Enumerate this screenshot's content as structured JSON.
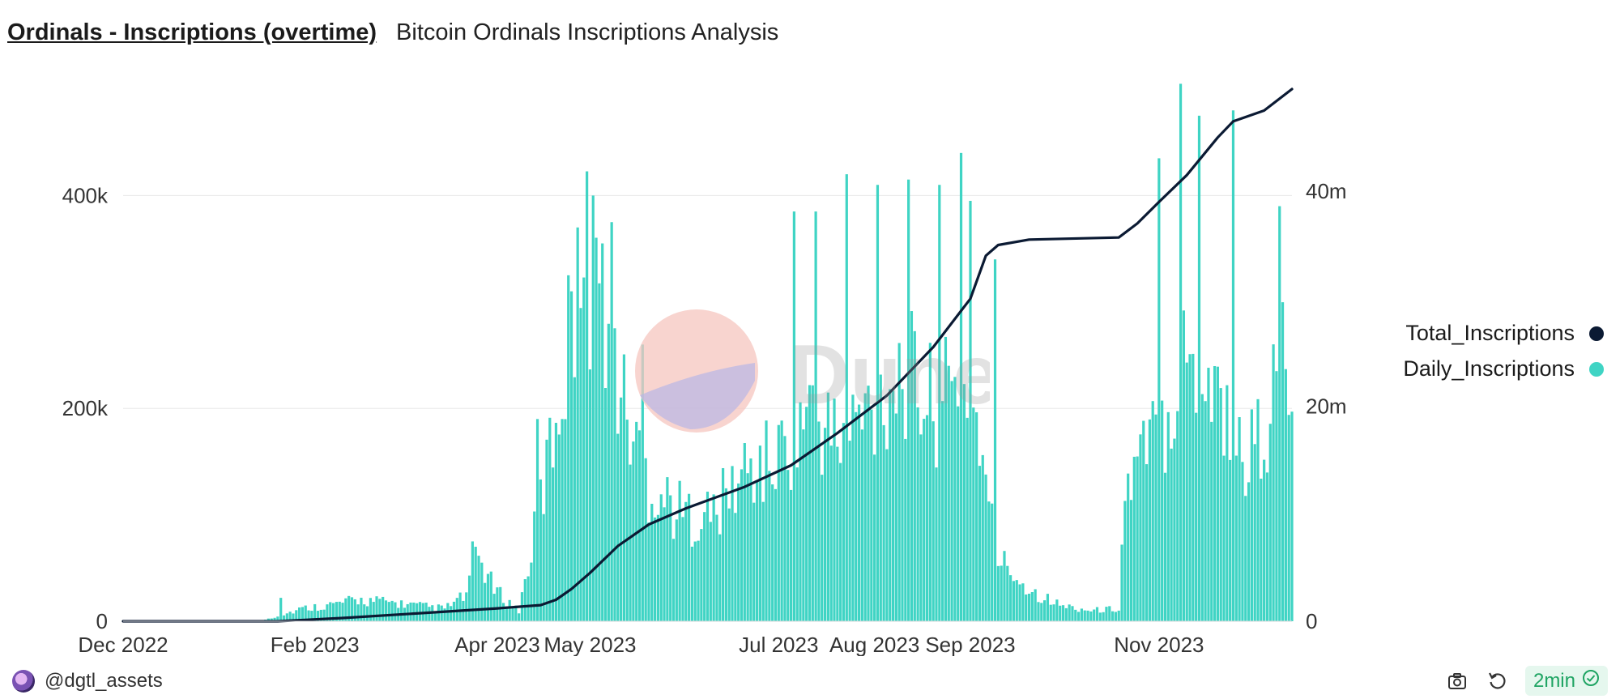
{
  "header": {
    "title": "Ordinals - Inscriptions (overtime)",
    "subtitle": "Bitcoin Ordinals Inscriptions Analysis"
  },
  "watermark": {
    "text": "Dune"
  },
  "legend": {
    "items": [
      {
        "label": "Total_Inscriptions",
        "color": "#0b1a33"
      },
      {
        "label": "Daily_Inscriptions",
        "color": "#3fd4c4"
      }
    ]
  },
  "footer": {
    "author": "@dgtl_assets",
    "refresh_label": "2min",
    "icons": [
      "camera-icon",
      "refresh-icon",
      "check-circle-icon"
    ]
  },
  "chart_data": {
    "type": "bar",
    "x_start": "2022-12-01",
    "x_tick_labels": [
      "Dec 2022",
      "Feb 2023",
      "Apr 2023",
      "May 2023",
      "Jul 2023",
      "Aug 2023",
      "Sep 2023",
      "Nov 2023"
    ],
    "x_tick_dates": [
      "2022-12-01",
      "2023-02-01",
      "2023-04-01",
      "2023-05-01",
      "2023-07-01",
      "2023-08-01",
      "2023-09-01",
      "2023-11-01"
    ],
    "y_left": {
      "ticks": [
        0,
        200000,
        400000
      ],
      "tick_labels": [
        "0",
        "200k",
        "400k"
      ],
      "range": [
        0,
        500000
      ]
    },
    "y_right": {
      "ticks": [
        0,
        20000000,
        40000000
      ],
      "tick_labels": [
        "0",
        "20m",
        "40m"
      ],
      "range": [
        0,
        49500000
      ]
    },
    "grid": true,
    "legend_position": "right",
    "series": [
      {
        "name": "Daily_Inscriptions",
        "kind": "bar",
        "axis": "left",
        "color": "#3fd4c4",
        "anchors": [
          [
            "2022-12-01",
            0
          ],
          [
            "2023-01-14",
            0
          ],
          [
            "2023-01-20",
            5000
          ],
          [
            "2023-01-28",
            12000
          ],
          [
            "2023-02-05",
            15000
          ],
          [
            "2023-02-15",
            20000
          ],
          [
            "2023-02-25",
            18000
          ],
          [
            "2023-03-05",
            15000
          ],
          [
            "2023-03-15",
            12000
          ],
          [
            "2023-03-22",
            25000
          ],
          [
            "2023-03-26",
            60000
          ],
          [
            "2023-03-31",
            30000
          ],
          [
            "2023-04-08",
            10000
          ],
          [
            "2023-04-13",
            80000
          ],
          [
            "2023-04-18",
            160000
          ],
          [
            "2023-04-24",
            260000
          ],
          [
            "2023-04-30",
            340000
          ],
          [
            "2023-05-06",
            300000
          ],
          [
            "2023-05-12",
            200000
          ],
          [
            "2023-05-20",
            130000
          ],
          [
            "2023-05-31",
            100000
          ],
          [
            "2023-06-10",
            100000
          ],
          [
            "2023-06-20",
            140000
          ],
          [
            "2023-06-30",
            150000
          ],
          [
            "2023-07-10",
            200000
          ],
          [
            "2023-07-20",
            170000
          ],
          [
            "2023-07-31",
            200000
          ],
          [
            "2023-08-10",
            240000
          ],
          [
            "2023-08-20",
            200000
          ],
          [
            "2023-08-31",
            220000
          ],
          [
            "2023-09-04",
            180000
          ],
          [
            "2023-09-06",
            120000
          ],
          [
            "2023-09-10",
            60000
          ],
          [
            "2023-09-20",
            30000
          ],
          [
            "2023-09-30",
            15000
          ],
          [
            "2023-10-10",
            10000
          ],
          [
            "2023-10-19",
            12000
          ],
          [
            "2023-10-21",
            120000
          ],
          [
            "2023-11-01",
            180000
          ],
          [
            "2023-11-10",
            250000
          ],
          [
            "2023-11-20",
            220000
          ],
          [
            "2023-11-28",
            150000
          ],
          [
            "2023-12-05",
            180000
          ],
          [
            "2023-12-12",
            250000
          ],
          [
            "2023-12-14",
            160000
          ]
        ],
        "peaks": [
          [
            "2023-01-21",
            22000
          ],
          [
            "2023-03-24",
            75000
          ],
          [
            "2023-03-25",
            70000
          ],
          [
            "2023-04-14",
            190000
          ],
          [
            "2023-04-25",
            310000
          ],
          [
            "2023-04-27",
            370000
          ],
          [
            "2023-05-02",
            400000
          ],
          [
            "2023-05-05",
            355000
          ],
          [
            "2023-05-08",
            375000
          ],
          [
            "2023-05-18",
            260000
          ],
          [
            "2023-07-06",
            385000
          ],
          [
            "2023-07-13",
            385000
          ],
          [
            "2023-07-23",
            420000
          ],
          [
            "2023-08-02",
            410000
          ],
          [
            "2023-08-12",
            415000
          ],
          [
            "2023-08-22",
            410000
          ],
          [
            "2023-08-29",
            440000
          ],
          [
            "2023-09-01",
            395000
          ],
          [
            "2023-09-09",
            340000
          ],
          [
            "2023-11-01",
            435000
          ],
          [
            "2023-11-08",
            505000
          ],
          [
            "2023-11-14",
            475000
          ],
          [
            "2023-11-25",
            480000
          ],
          [
            "2023-12-10",
            390000
          ]
        ]
      },
      {
        "name": "Total_Inscriptions",
        "kind": "line",
        "axis": "right",
        "color": "#0b1a33",
        "points": [
          [
            "2022-12-01",
            0
          ],
          [
            "2023-01-20",
            0
          ],
          [
            "2023-02-10",
            300000
          ],
          [
            "2023-03-10",
            800000
          ],
          [
            "2023-04-01",
            1200000
          ],
          [
            "2023-04-15",
            1500000
          ],
          [
            "2023-04-20",
            2000000
          ],
          [
            "2023-04-25",
            3000000
          ],
          [
            "2023-05-01",
            4500000
          ],
          [
            "2023-05-10",
            7000000
          ],
          [
            "2023-05-20",
            9000000
          ],
          [
            "2023-06-01",
            10500000
          ],
          [
            "2023-06-20",
            12500000
          ],
          [
            "2023-07-05",
            14500000
          ],
          [
            "2023-07-20",
            17500000
          ],
          [
            "2023-08-05",
            21000000
          ],
          [
            "2023-08-20",
            25500000
          ],
          [
            "2023-09-01",
            30000000
          ],
          [
            "2023-09-06",
            34000000
          ],
          [
            "2023-09-10",
            35000000
          ],
          [
            "2023-09-20",
            35500000
          ],
          [
            "2023-10-19",
            35700000
          ],
          [
            "2023-10-25",
            37000000
          ],
          [
            "2023-11-01",
            39000000
          ],
          [
            "2023-11-10",
            41500000
          ],
          [
            "2023-11-20",
            45000000
          ],
          [
            "2023-11-25",
            46500000
          ],
          [
            "2023-12-05",
            47500000
          ],
          [
            "2023-12-14",
            49500000
          ]
        ]
      }
    ]
  }
}
